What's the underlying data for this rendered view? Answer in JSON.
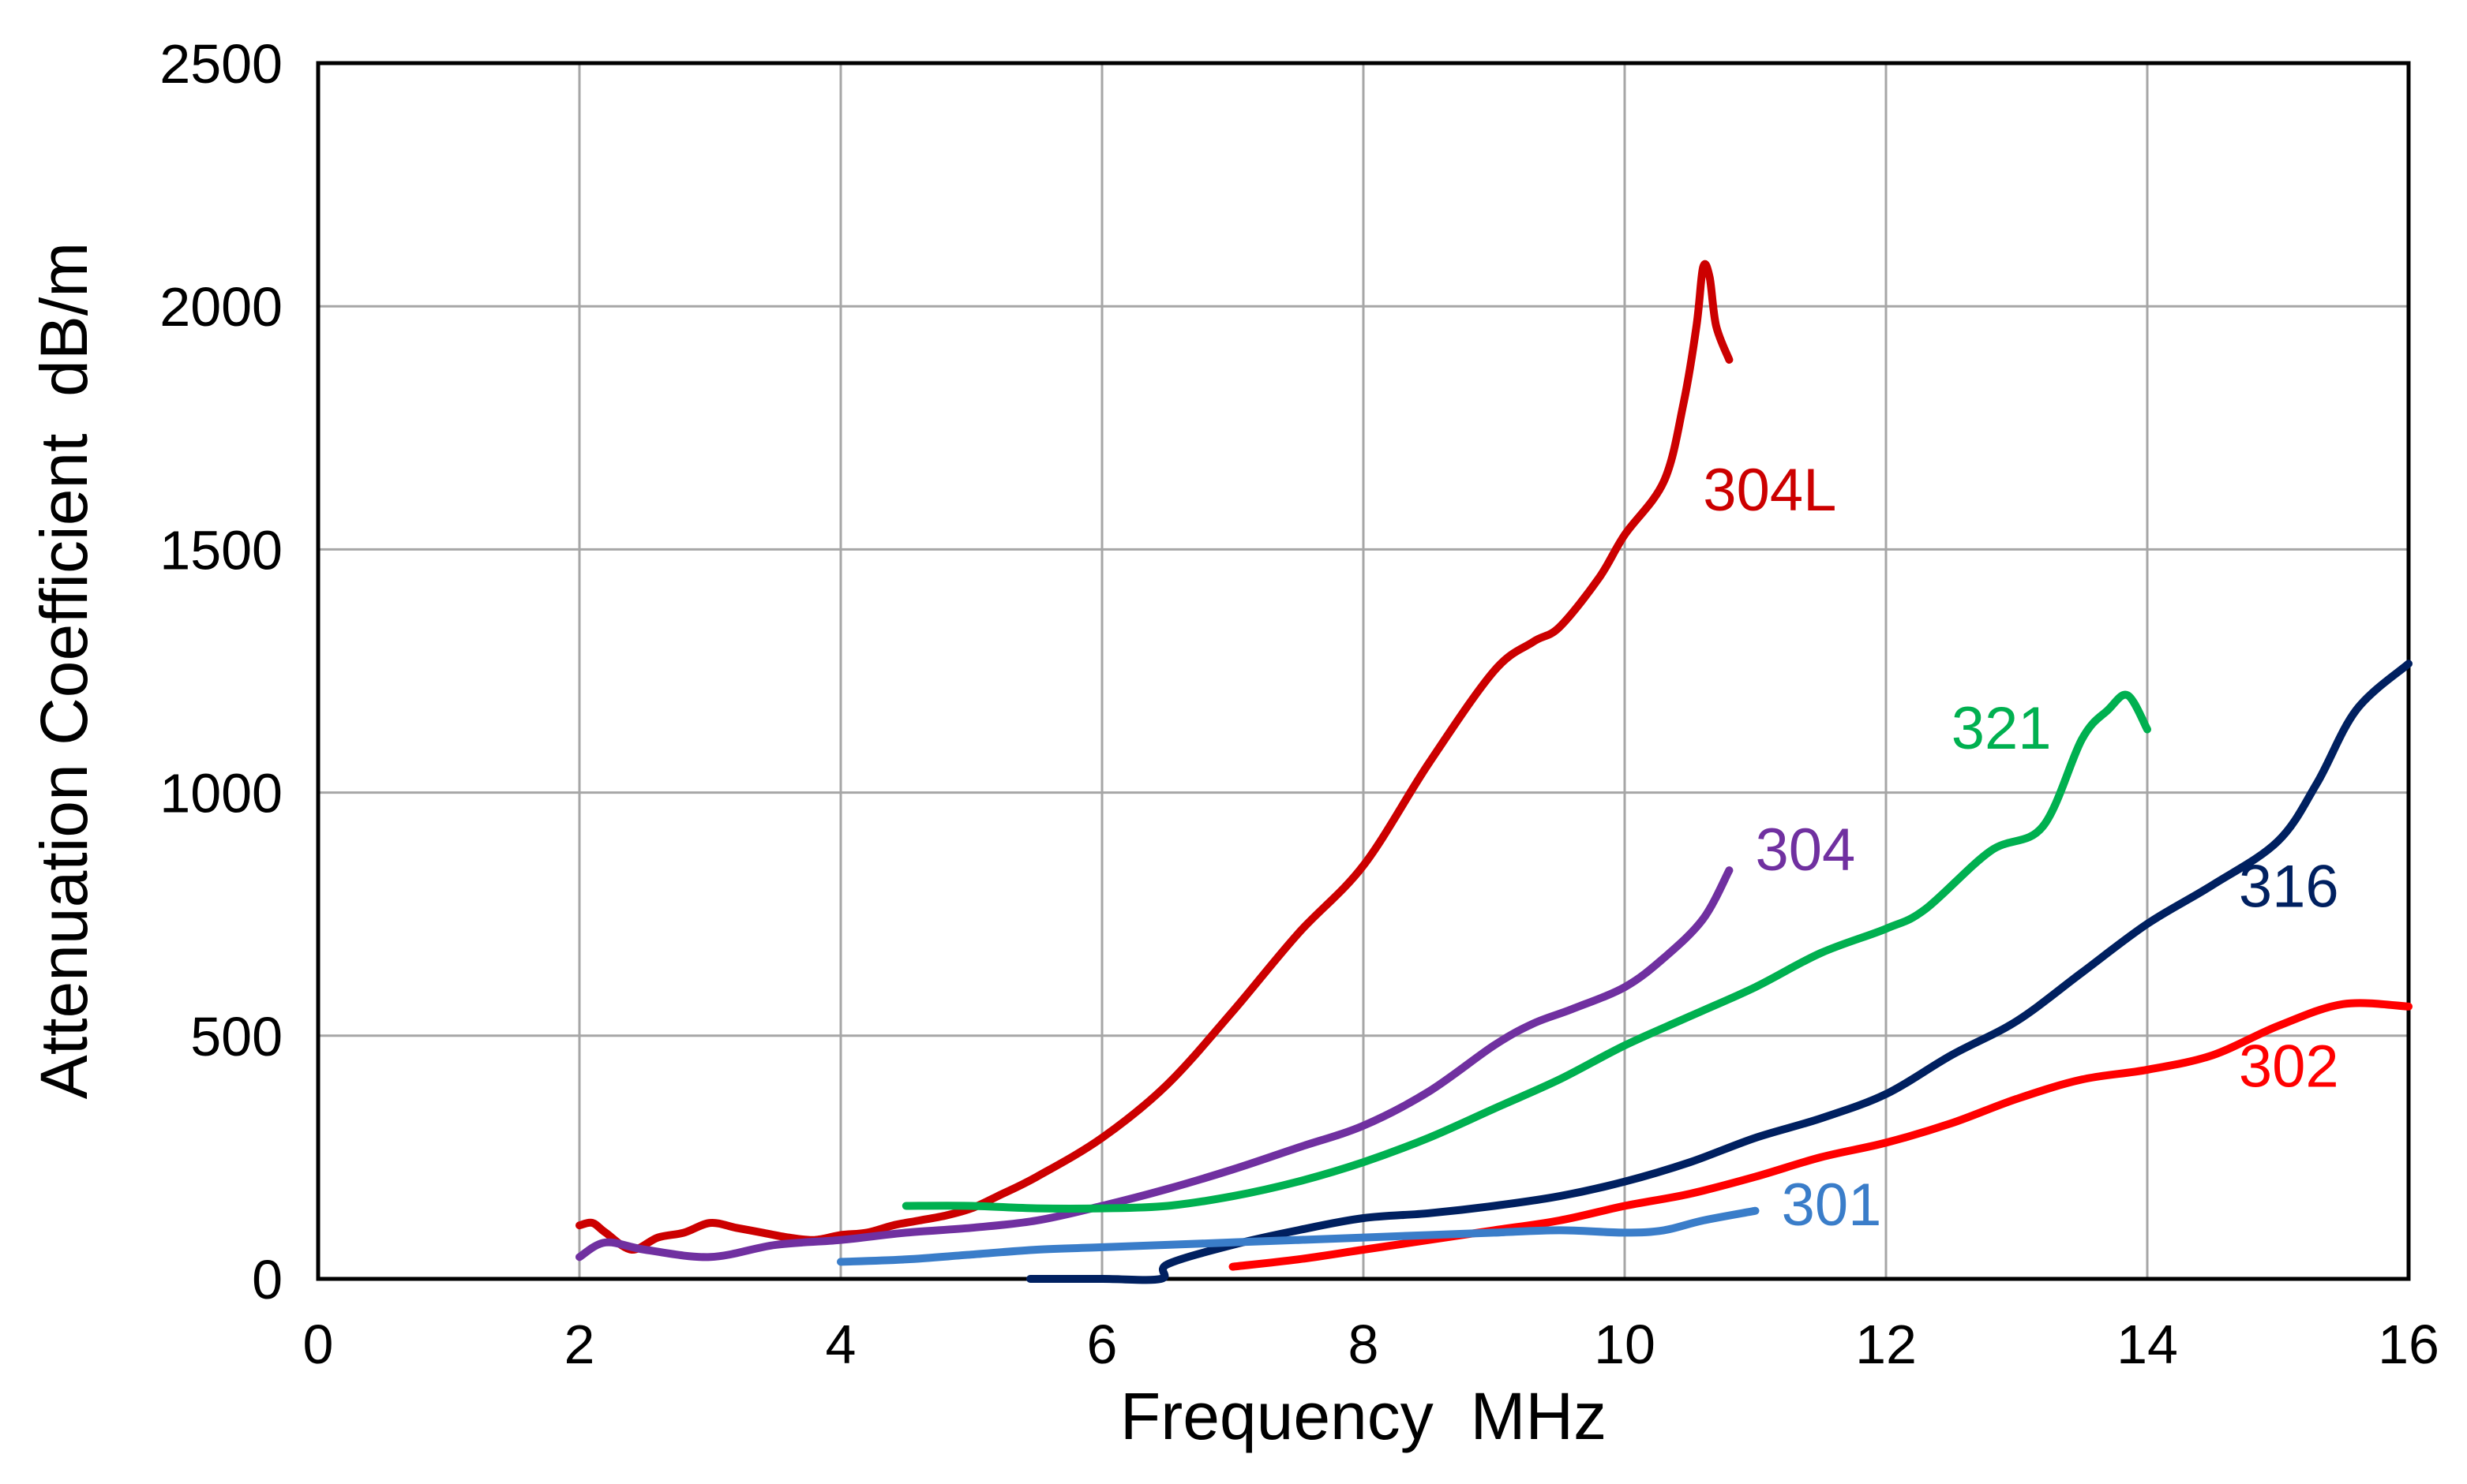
{
  "chart_data": {
    "type": "line",
    "title": "",
    "xlabel": "Frequency  MHz",
    "ylabel": "Attenuation Coefficient  dB/m",
    "xlim": [
      0,
      16
    ],
    "ylim": [
      0,
      2500
    ],
    "xticks": [
      0,
      2,
      4,
      6,
      8,
      10,
      12,
      14,
      16
    ],
    "yticks": [
      0,
      500,
      1000,
      1500,
      2000,
      2500
    ],
    "xtick_labels": [
      "0",
      "2",
      "4",
      "6",
      "8",
      "10",
      "12",
      "14",
      "16"
    ],
    "ytick_labels": [
      "0",
      "500",
      "1000",
      "1500",
      "2000",
      "2500"
    ],
    "grid": true,
    "legend": "inline labels",
    "series": [
      {
        "name": "304L",
        "color": "#cc0000",
        "label_at": [
          10.6,
          1580
        ],
        "x": [
          2.0,
          2.1,
          2.2,
          2.4,
          2.6,
          2.8,
          3.0,
          3.2,
          3.4,
          3.6,
          3.8,
          4.0,
          4.2,
          4.4,
          4.6,
          4.8,
          5.0,
          5.2,
          5.5,
          6.0,
          6.5,
          7.0,
          7.5,
          8.0,
          8.5,
          9.0,
          9.3,
          9.5,
          9.8,
          10.0,
          10.3,
          10.45,
          10.55,
          10.6,
          10.65,
          10.7,
          10.8
        ],
        "y": [
          110,
          115,
          95,
          60,
          85,
          95,
          115,
          105,
          95,
          85,
          80,
          90,
          95,
          110,
          120,
          130,
          145,
          170,
          210,
          290,
          400,
          550,
          710,
          850,
          1060,
          1250,
          1310,
          1340,
          1440,
          1530,
          1640,
          1800,
          1960,
          2080,
          2060,
          1960,
          1890
        ]
      },
      {
        "name": "304",
        "color": "#7030a0",
        "label_at": [
          11.0,
          840
        ],
        "x": [
          2.0,
          2.2,
          2.5,
          3.0,
          3.5,
          4.0,
          4.5,
          5.0,
          5.5,
          6.0,
          6.5,
          7.0,
          7.5,
          8.0,
          8.5,
          9.0,
          9.3,
          9.6,
          10.0,
          10.3,
          10.6,
          10.8
        ],
        "y": [
          45,
          75,
          60,
          45,
          70,
          80,
          95,
          105,
          120,
          150,
          185,
          225,
          270,
          315,
          385,
          480,
          525,
          555,
          600,
          660,
          740,
          840
        ]
      },
      {
        "name": "321",
        "color": "#00b050",
        "label_at": [
          12.5,
          1090
        ],
        "x": [
          4.5,
          5.0,
          5.5,
          6.0,
          6.5,
          7.0,
          7.5,
          8.0,
          8.5,
          9.0,
          9.5,
          10.0,
          10.5,
          11.0,
          11.5,
          12.0,
          12.3,
          12.8,
          13.2,
          13.5,
          13.7,
          13.85,
          14.0
        ],
        "y": [
          150,
          150,
          145,
          145,
          150,
          170,
          200,
          240,
          290,
          350,
          410,
          480,
          540,
          600,
          670,
          720,
          760,
          880,
          930,
          1110,
          1170,
          1200,
          1130
        ]
      },
      {
        "name": "316",
        "color": "#002060",
        "label_at": [
          14.7,
          765
        ],
        "x": [
          5.45,
          6.0,
          6.45,
          6.5,
          7.0,
          7.5,
          8.0,
          8.5,
          9.0,
          9.5,
          10.0,
          10.5,
          11.0,
          11.5,
          12.0,
          12.5,
          13.0,
          13.5,
          14.0,
          14.5,
          15.0,
          15.3,
          15.6,
          16.0
        ],
        "y": [
          0,
          0,
          0,
          30,
          70,
          100,
          125,
          135,
          150,
          170,
          200,
          240,
          290,
          330,
          380,
          460,
          530,
          630,
          730,
          810,
          900,
          1020,
          1170,
          1265
        ]
      },
      {
        "name": "302",
        "color": "#ff0000",
        "label_at": [
          14.7,
          395
        ],
        "x": [
          7.0,
          7.5,
          8.0,
          8.5,
          9.0,
          9.5,
          10.0,
          10.5,
          11.0,
          11.5,
          12.0,
          12.5,
          13.0,
          13.5,
          14.0,
          14.5,
          15.0,
          15.5,
          16.0
        ],
        "y": [
          25,
          40,
          60,
          80,
          100,
          120,
          150,
          175,
          210,
          250,
          280,
          320,
          370,
          410,
          430,
          460,
          520,
          565,
          560
        ]
      },
      {
        "name": "301",
        "color": "#3a7dc9",
        "label_at": [
          11.2,
          110
        ],
        "x": [
          4.0,
          4.5,
          5.0,
          5.5,
          6.0,
          6.5,
          7.0,
          7.5,
          8.0,
          8.5,
          9.0,
          9.5,
          10.0,
          10.3,
          10.6,
          11.0
        ],
        "y": [
          35,
          40,
          50,
          60,
          65,
          70,
          75,
          80,
          85,
          90,
          95,
          100,
          95,
          100,
          120,
          140
        ]
      }
    ]
  }
}
